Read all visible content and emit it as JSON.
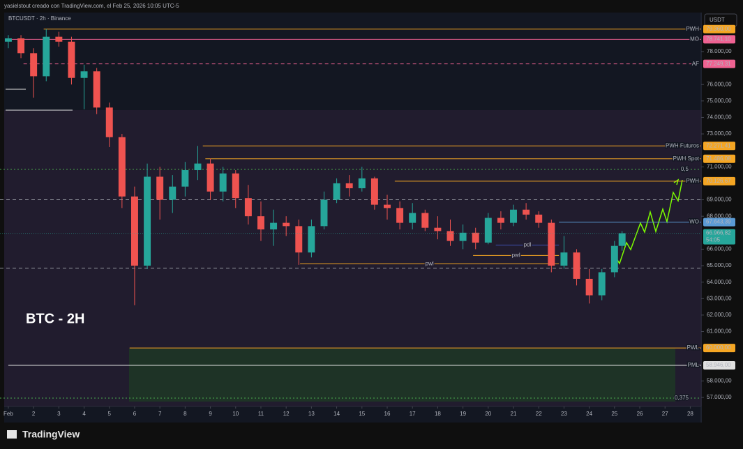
{
  "page": {
    "credit": "yasielstout creado con TradingView.com, el Feb 25, 2026 10:05 UTC-5",
    "symbol": "BTCUSDT · 2h · Binance",
    "currency": "USDT",
    "label": "BTC - 2H",
    "logo": "TradingView"
  },
  "chart_data": {
    "type": "candlestick",
    "up_color": "#26a69a",
    "down_color": "#ef5350",
    "xlim": [
      0.67,
      28.43
    ],
    "ylim": [
      56450,
      79860
    ],
    "xticks": [
      {
        "value": 1,
        "label": "Feb"
      },
      2,
      3,
      4,
      5,
      6,
      7,
      8,
      9,
      10,
      11,
      12,
      13,
      14,
      15,
      16,
      17,
      18,
      19,
      20,
      21,
      22,
      23,
      24,
      25,
      26,
      27,
      28
    ],
    "yticks": [
      {
        "value": 78000,
        "label": "78.000,00"
      },
      {
        "value": 76000,
        "label": "76.000,00"
      },
      {
        "value": 75000,
        "label": "75.000,00"
      },
      {
        "value": 74000,
        "label": "74.000,00"
      },
      {
        "value": 73000,
        "label": "73.000,00"
      },
      {
        "value": 71000,
        "label": "71.000,00"
      },
      {
        "value": 69000,
        "label": "69.000,00"
      },
      {
        "value": 68000,
        "label": "68.000,00"
      },
      {
        "value": 66000,
        "label": "66.000,00"
      },
      {
        "value": 65000,
        "label": "65.000,00"
      },
      {
        "value": 64000,
        "label": "64.000,00"
      },
      {
        "value": 63000,
        "label": "63.000,00"
      },
      {
        "value": 62000,
        "label": "62.000,00"
      },
      {
        "value": 61000,
        "label": "61.000,00"
      },
      {
        "value": 58000,
        "label": "58.000,00"
      },
      {
        "value": 57000,
        "label": "57.000,00"
      }
    ],
    "x": [
      1.0,
      1.5,
      2.0,
      2.5,
      3.0,
      3.5,
      4.0,
      4.5,
      5.0,
      5.5,
      6.0,
      6.5,
      7.0,
      7.5,
      8.0,
      8.5,
      9.0,
      9.5,
      10.0,
      10.5,
      11.0,
      11.5,
      12.0,
      12.5,
      13.0,
      13.5,
      14.0,
      14.5,
      15.0,
      15.5,
      16.0,
      16.5,
      17.0,
      17.5,
      18.0,
      18.5,
      19.0,
      19.5,
      20.0,
      20.5,
      21.0,
      21.5,
      22.0,
      22.5,
      23.0,
      23.5,
      24.0,
      24.5,
      25.0,
      25.3
    ],
    "open": [
      78600,
      78800,
      77900,
      76500,
      78900,
      78600,
      76400,
      76800,
      74600,
      72800,
      69200,
      65000,
      70400,
      69000,
      69800,
      70800,
      71200,
      69500,
      70600,
      69100,
      68000,
      67200,
      67600,
      67400,
      65800,
      67400,
      69000,
      70000,
      69700,
      70300,
      68700,
      68500,
      67600,
      68200,
      67300,
      67100,
      66500,
      67000,
      66400,
      67900,
      67600,
      68400,
      68100,
      67600,
      65000,
      65800,
      64200,
      63200,
      64600,
      66200
    ],
    "high": [
      79000,
      79000,
      78200,
      79360,
      79200,
      78900,
      77200,
      77000,
      74900,
      73000,
      69800,
      71200,
      71000,
      70500,
      71300,
      72271,
      71500,
      71000,
      70800,
      69900,
      68900,
      68400,
      68000,
      67800,
      67800,
      69500,
      70300,
      70500,
      71000,
      70400,
      69300,
      68900,
      68800,
      68400,
      68000,
      67800,
      67500,
      67300,
      68200,
      68300,
      68700,
      68800,
      68300,
      67800,
      66800,
      66000,
      64800,
      64800,
      66500,
      67100
    ],
    "low": [
      78200,
      77600,
      75200,
      76200,
      78300,
      76000,
      74500,
      74200,
      72200,
      68500,
      62600,
      64800,
      67800,
      68200,
      69200,
      70200,
      69000,
      68900,
      68500,
      67500,
      66500,
      66200,
      66800,
      65050,
      65500,
      67200,
      68800,
      69200,
      69500,
      68400,
      67800,
      67200,
      67200,
      67100,
      66600,
      66200,
      66000,
      66000,
      66300,
      67200,
      67400,
      67800,
      67300,
      64600,
      64800,
      63800,
      62700,
      62900,
      64300,
      65900
    ],
    "close": [
      78800,
      77900,
      76500,
      78900,
      78600,
      76400,
      76800,
      74600,
      72800,
      69200,
      65000,
      70400,
      69000,
      69800,
      70800,
      71200,
      69500,
      70600,
      69100,
      68000,
      67200,
      67600,
      67400,
      65800,
      67400,
      69000,
      70000,
      69700,
      70300,
      68700,
      68500,
      67600,
      68200,
      67300,
      67100,
      66500,
      67000,
      66400,
      67900,
      67600,
      68400,
      68100,
      67600,
      65000,
      65800,
      64200,
      63200,
      64600,
      66200,
      66966.82
    ],
    "levels": [
      {
        "name": "PWH",
        "value": 79360,
        "label": "79.360,00",
        "start": 2.4,
        "color": "#f5a623",
        "style": "solid"
      },
      {
        "name": "MO",
        "value": 78741.1,
        "label": "78.741,10",
        "start": 1.0,
        "color": "#f06292",
        "style": "solid"
      },
      {
        "name": "AF",
        "value": 77249.31,
        "label": "77.249,31",
        "start": 1.6,
        "color": "#f06292",
        "style": "dashed"
      },
      {
        "name": "PWH Futuros",
        "value": 72271.41,
        "label": "72.271,41",
        "start": 8.7,
        "color": "#f5a623",
        "style": "solid"
      },
      {
        "name": "PWH Spot",
        "value": 71486.08,
        "label": "71.486,08",
        "start": 8.8,
        "color": "#f5a623",
        "style": "solid"
      },
      {
        "name": "0,5",
        "value": 70850,
        "start": 0.67,
        "color": "#4caf50",
        "style": "dotted"
      },
      {
        "name": "PWH",
        "value": 70126.67,
        "label": "70.126,67",
        "start": 16.3,
        "color": "#f5a623",
        "style": "solid"
      },
      {
        "value": 69000,
        "start": 0.67,
        "color": "#9598a1",
        "style": "dashed"
      },
      {
        "name": "WO",
        "value": 67643.39,
        "label": "67.643,39",
        "start": 22.8,
        "color": "#5b9bd5",
        "style": "solid"
      },
      {
        "value": 64850,
        "start": 0.67,
        "color": "#9598a1",
        "style": "dashed"
      },
      {
        "name": "PWL",
        "value": 60000,
        "label": "60.000,00",
        "start": 5.8,
        "color": "#f5a623",
        "style": "solid"
      },
      {
        "name": "PML",
        "value": 58946,
        "label": "58.946,00",
        "start": 1.0,
        "color": "#e0e0e0",
        "style": "solid"
      },
      {
        "name": "0,375",
        "value": 56960,
        "start": 0.67,
        "color": "#4caf50",
        "style": "dotted"
      }
    ],
    "segments": [
      {
        "name": "pdl",
        "value": 66250,
        "start": 20.3,
        "end": 22.8,
        "color": "#3f51b5"
      },
      {
        "name": "pwl",
        "value": 65620,
        "start": 19.4,
        "end": 22.8,
        "color": "#f5a623"
      },
      {
        "name": "pwl",
        "value": 65110,
        "start": 12.55,
        "end": 22.8,
        "color": "#f5a623"
      }
    ],
    "last": {
      "value": 66966.82,
      "label": "66.966,82",
      "countdown": "54:05",
      "color": "#26a69a"
    }
  }
}
